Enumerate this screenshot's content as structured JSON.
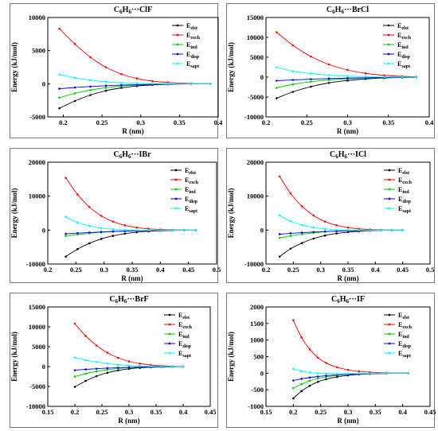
{
  "chart_data": [
    {
      "type": "line",
      "title": "C6H6···ClF",
      "title_parts": {
        "a": "C",
        "b": "6",
        "c": "H",
        "d": "6",
        "e": "···ClF"
      },
      "xlabel": "R (nm)",
      "ylabel": "Energy (kJ/mol)",
      "xlim": [
        0.18,
        0.4
      ],
      "ylim": [
        -5000,
        10000
      ],
      "xticks": [
        0.2,
        0.25,
        0.3,
        0.35,
        0.4
      ],
      "xtick_labels": [
        "0.2",
        "0.25",
        "0.3",
        "0.35",
        "0.4"
      ],
      "yticks": [
        -5000,
        0,
        5000,
        10000
      ],
      "ytick_labels": [
        "-5000",
        "0",
        "5000",
        "10000"
      ],
      "legend_position": "top-right",
      "x": [
        0.195,
        0.215,
        0.235,
        0.255,
        0.275,
        0.295,
        0.315,
        0.335,
        0.365,
        0.39
      ],
      "series": [
        {
          "name": "Eelst",
          "base": "E",
          "sub": "elst",
          "color": "#000000",
          "values": [
            -3700,
            -2600,
            -1700,
            -1050,
            -620,
            -340,
            -170,
            -80,
            -20,
            0
          ]
        },
        {
          "name": "Eexch",
          "base": "E",
          "sub": "exch",
          "color": "#ff0000",
          "values": [
            8300,
            6000,
            4000,
            2500,
            1450,
            800,
            400,
            200,
            50,
            10
          ]
        },
        {
          "name": "Eind",
          "base": "E",
          "sub": "ind",
          "color": "#00cc00",
          "values": [
            -2100,
            -1450,
            -950,
            -600,
            -350,
            -190,
            -90,
            -40,
            -10,
            0
          ]
        },
        {
          "name": "Edisp",
          "base": "E",
          "sub": "disp",
          "color": "#0000ff",
          "values": [
            -750,
            -560,
            -420,
            -300,
            -210,
            -140,
            -90,
            -55,
            -25,
            -10
          ]
        },
        {
          "name": "Esapt",
          "base": "E",
          "sub": "sapt",
          "color": "#00ffff",
          "values": [
            1400,
            900,
            550,
            300,
            150,
            60,
            20,
            0,
            -10,
            -5
          ]
        }
      ]
    },
    {
      "type": "line",
      "title": "C6H6···BrCl",
      "title_parts": {
        "a": "C",
        "b": "6",
        "c": "H",
        "d": "6",
        "e": "···BrCl"
      },
      "xlabel": "R (nm)",
      "ylabel": "Energy (kJ/mol)",
      "xlim": [
        0.2,
        0.4
      ],
      "ylim": [
        -10000,
        15000
      ],
      "xticks": [
        0.2,
        0.25,
        0.3,
        0.35,
        0.4
      ],
      "xtick_labels": [
        "0.2",
        "0.25",
        "0.3",
        "0.35",
        "0.4"
      ],
      "yticks": [
        -10000,
        -5000,
        0,
        5000,
        10000,
        15000
      ],
      "ytick_labels": [
        "-10000",
        "-5000",
        "0",
        "5000",
        "10000",
        "15000"
      ],
      "legend_position": "top-right",
      "x": [
        0.213,
        0.233,
        0.255,
        0.277,
        0.3,
        0.322,
        0.345,
        0.367,
        0.384
      ],
      "series": [
        {
          "name": "Eelst",
          "base": "E",
          "sub": "elst",
          "color": "#000000",
          "values": [
            -5300,
            -3700,
            -2400,
            -1450,
            -850,
            -450,
            -220,
            -100,
            -40
          ]
        },
        {
          "name": "Eexch",
          "base": "E",
          "sub": "exch",
          "color": "#ff0000",
          "values": [
            11300,
            8000,
            5200,
            3200,
            1800,
            950,
            450,
            200,
            90
          ]
        },
        {
          "name": "Eind",
          "base": "E",
          "sub": "ind",
          "color": "#00cc00",
          "values": [
            -2700,
            -1800,
            -1150,
            -700,
            -400,
            -210,
            -100,
            -45,
            -20
          ]
        },
        {
          "name": "Edisp",
          "base": "E",
          "sub": "disp",
          "color": "#0000ff",
          "values": [
            -900,
            -700,
            -520,
            -370,
            -250,
            -160,
            -100,
            -60,
            -35
          ]
        },
        {
          "name": "Esapt",
          "base": "E",
          "sub": "sapt",
          "color": "#00ffff",
          "values": [
            2500,
            1500,
            900,
            500,
            250,
            110,
            40,
            5,
            -5
          ]
        }
      ]
    },
    {
      "type": "line",
      "title": "C6H6···IBr",
      "title_parts": {
        "a": "C",
        "b": "6",
        "c": "H",
        "d": "6",
        "e": "···IBr"
      },
      "xlabel": "R (nm)",
      "ylabel": "Energy (kJ/mol)",
      "xlim": [
        0.2,
        0.5
      ],
      "ylim": [
        -10000,
        20000
      ],
      "xticks": [
        0.2,
        0.25,
        0.3,
        0.35,
        0.4,
        0.45,
        0.5
      ],
      "xtick_labels": [
        "0.2",
        "0.25",
        "0.3",
        "0.35",
        "0.4",
        "0.45",
        "0.5"
      ],
      "yticks": [
        -10000,
        0,
        10000,
        20000
      ],
      "ytick_labels": [
        "-10000",
        "0",
        "10000",
        "20000"
      ],
      "legend_position": "top-right",
      "x": [
        0.232,
        0.253,
        0.274,
        0.295,
        0.316,
        0.337,
        0.358,
        0.379,
        0.4,
        0.421,
        0.442,
        0.463
      ],
      "series": [
        {
          "name": "Eelst",
          "base": "E",
          "sub": "elst",
          "color": "#000000",
          "values": [
            -7800,
            -5600,
            -3900,
            -2600,
            -1700,
            -1050,
            -620,
            -350,
            -190,
            -100,
            -50,
            -20
          ]
        },
        {
          "name": "Eexch",
          "base": "E",
          "sub": "exch",
          "color": "#ff0000",
          "values": [
            15400,
            10500,
            6800,
            4200,
            2500,
            1400,
            750,
            380,
            180,
            80,
            30,
            10
          ]
        },
        {
          "name": "Eind",
          "base": "E",
          "sub": "ind",
          "color": "#00cc00",
          "values": [
            -1700,
            -1300,
            -950,
            -650,
            -420,
            -260,
            -150,
            -80,
            -40,
            -20,
            -10,
            0
          ]
        },
        {
          "name": "Edisp",
          "base": "E",
          "sub": "disp",
          "color": "#0000ff",
          "values": [
            -1100,
            -900,
            -720,
            -560,
            -420,
            -300,
            -210,
            -140,
            -90,
            -55,
            -30,
            -15
          ]
        },
        {
          "name": "Esapt",
          "base": "E",
          "sub": "sapt",
          "color": "#00ffff",
          "values": [
            3900,
            2200,
            1200,
            600,
            250,
            60,
            -20,
            -50,
            -50,
            -40,
            -30,
            -20
          ]
        }
      ]
    },
    {
      "type": "line",
      "title": "C6H6···ICl",
      "title_parts": {
        "a": "C",
        "b": "6",
        "c": "H",
        "d": "6",
        "e": "···ICl"
      },
      "xlabel": "R (nm)",
      "ylabel": "Energy (kJ/mol)",
      "xlim": [
        0.2,
        0.5
      ],
      "ylim": [
        -10000,
        20000
      ],
      "xticks": [
        0.2,
        0.25,
        0.3,
        0.35,
        0.4,
        0.45,
        0.5
      ],
      "xtick_labels": [
        "0.2",
        "0.25",
        "0.3",
        "0.35",
        "0.4",
        "0.45",
        "0.5"
      ],
      "yticks": [
        -10000,
        0,
        10000,
        20000
      ],
      "ytick_labels": [
        "-10000",
        "0",
        "10000",
        "20000"
      ],
      "legend_position": "top-right",
      "x": [
        0.225,
        0.245,
        0.266,
        0.287,
        0.308,
        0.329,
        0.35,
        0.37,
        0.39,
        0.41,
        0.43,
        0.45
      ],
      "series": [
        {
          "name": "Eelst",
          "base": "E",
          "sub": "elst",
          "color": "#000000",
          "values": [
            -7800,
            -5500,
            -3800,
            -2500,
            -1600,
            -1000,
            -600,
            -330,
            -180,
            -90,
            -40,
            -15
          ]
        },
        {
          "name": "Eexch",
          "base": "E",
          "sub": "exch",
          "color": "#ff0000",
          "values": [
            15800,
            10800,
            7000,
            4300,
            2500,
            1400,
            750,
            370,
            170,
            70,
            25,
            5
          ]
        },
        {
          "name": "Eind",
          "base": "E",
          "sub": "ind",
          "color": "#00cc00",
          "values": [
            -2300,
            -1700,
            -1200,
            -800,
            -500,
            -300,
            -170,
            -90,
            -45,
            -20,
            -10,
            0
          ]
        },
        {
          "name": "Edisp",
          "base": "E",
          "sub": "disp",
          "color": "#0000ff",
          "values": [
            -1200,
            -950,
            -750,
            -580,
            -430,
            -310,
            -210,
            -140,
            -90,
            -55,
            -30,
            -15
          ]
        },
        {
          "name": "Esapt",
          "base": "E",
          "sub": "sapt",
          "color": "#00ffff",
          "values": [
            4300,
            2600,
            1500,
            800,
            350,
            100,
            0,
            -40,
            -50,
            -40,
            -30,
            -20
          ]
        }
      ]
    },
    {
      "type": "line",
      "title": "C6H6···BrF",
      "title_parts": {
        "a": "C",
        "b": "6",
        "c": "H",
        "d": "6",
        "e": "···BrF"
      },
      "xlabel": "R (nm)",
      "ylabel": "Energy (kJ/mol)",
      "xlim": [
        0.15,
        0.45
      ],
      "ylim": [
        -10000,
        15000
      ],
      "xticks": [
        0.15,
        0.2,
        0.25,
        0.3,
        0.35,
        0.4,
        0.45
      ],
      "xtick_labels": [
        "0.15",
        "0.2",
        "0.25",
        "0.3",
        "0.35",
        "0.4",
        "0.45"
      ],
      "yticks": [
        -10000,
        -5000,
        0,
        5000,
        10000,
        15000
      ],
      "ytick_labels": [
        "-10000",
        "-5000",
        "0",
        "5000",
        "10000",
        "15000"
      ],
      "legend_position": "top-right",
      "x": [
        0.2,
        0.22,
        0.24,
        0.26,
        0.28,
        0.3,
        0.32,
        0.34,
        0.36,
        0.38,
        0.4
      ],
      "series": [
        {
          "name": "Eelst",
          "base": "E",
          "sub": "elst",
          "color": "#000000",
          "values": [
            -5100,
            -3600,
            -2400,
            -1550,
            -950,
            -560,
            -320,
            -170,
            -80,
            -35,
            -10
          ]
        },
        {
          "name": "Eexch",
          "base": "E",
          "sub": "exch",
          "color": "#ff0000",
          "values": [
            10800,
            7700,
            5300,
            3500,
            2200,
            1300,
            750,
            400,
            200,
            90,
            40
          ]
        },
        {
          "name": "Eind",
          "base": "E",
          "sub": "ind",
          "color": "#00cc00",
          "values": [
            -2500,
            -1800,
            -1200,
            -780,
            -480,
            -280,
            -150,
            -75,
            -35,
            -15,
            -5
          ]
        },
        {
          "name": "Edisp",
          "base": "E",
          "sub": "disp",
          "color": "#0000ff",
          "values": [
            -900,
            -700,
            -530,
            -390,
            -280,
            -190,
            -120,
            -75,
            -45,
            -25,
            -15
          ]
        },
        {
          "name": "Esapt",
          "base": "E",
          "sub": "sapt",
          "color": "#00ffff",
          "values": [
            2300,
            1600,
            1170,
            780,
            490,
            270,
            160,
            80,
            40,
            15,
            10
          ]
        }
      ]
    },
    {
      "type": "line",
      "title": "C6H6···IF",
      "title_parts": {
        "a": "C",
        "b": "6",
        "c": "H",
        "d": "6",
        "e": "···IF"
      },
      "xlabel": "R (nm)",
      "ylabel": "Energy (kJ/mol)",
      "xlim": [
        0.15,
        0.45
      ],
      "ylim": [
        -1000,
        2000
      ],
      "xticks": [
        0.15,
        0.2,
        0.25,
        0.3,
        0.35,
        0.4,
        0.45
      ],
      "xtick_labels": [
        "0.15",
        "0.2",
        "0.25",
        "0.3",
        "0.35",
        "0.4",
        "0.45"
      ],
      "yticks": [
        -1000,
        -500,
        0,
        500,
        1000,
        1500,
        2000
      ],
      "ytick_labels": [
        "-1000",
        "-500",
        "0",
        "500",
        "1000",
        "1500",
        "2000"
      ],
      "legend_position": "top-right",
      "x": [
        0.2,
        0.215,
        0.23,
        0.245,
        0.26,
        0.28,
        0.3,
        0.32,
        0.34,
        0.37,
        0.41
      ],
      "series": [
        {
          "name": "Eelst",
          "base": "E",
          "sub": "elst",
          "color": "#000000",
          "values": [
            -760,
            -540,
            -380,
            -260,
            -180,
            -110,
            -65,
            -35,
            -20,
            -5,
            0
          ]
        },
        {
          "name": "Eexch",
          "base": "E",
          "sub": "exch",
          "color": "#ff0000",
          "values": [
            1600,
            1080,
            720,
            470,
            310,
            180,
            100,
            55,
            30,
            10,
            5
          ]
        },
        {
          "name": "Eind",
          "base": "E",
          "sub": "ind",
          "color": "#00cc00",
          "values": [
            -450,
            -330,
            -230,
            -160,
            -110,
            -65,
            -35,
            -20,
            -10,
            -5,
            0
          ]
        },
        {
          "name": "Edisp",
          "base": "E",
          "sub": "disp",
          "color": "#0000ff",
          "values": [
            -220,
            -170,
            -130,
            -100,
            -75,
            -50,
            -35,
            -22,
            -14,
            -8,
            -3
          ]
        },
        {
          "name": "Esapt",
          "base": "E",
          "sub": "sapt",
          "color": "#00ffff",
          "values": [
            130,
            60,
            20,
            0,
            -10,
            -15,
            -12,
            -8,
            -5,
            -3,
            -1
          ]
        }
      ]
    }
  ]
}
